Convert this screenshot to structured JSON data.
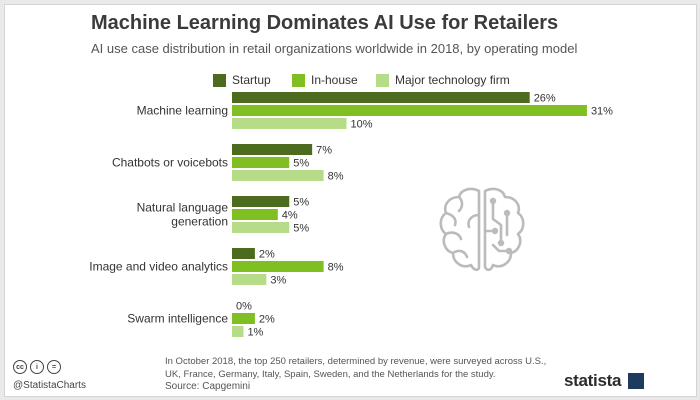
{
  "header": {
    "title": "Machine Learning Dominates AI Use for Retailers",
    "subtitle": "AI use case distribution in retail organizations worldwide in 2018, by operating model"
  },
  "colors": {
    "startup": "#4d6b1e",
    "inhouse": "#7fbf22",
    "major": "#b6dc8a"
  },
  "chart_data": {
    "type": "bar",
    "orientation": "horizontal",
    "categories": [
      "Machine learning",
      "Chatbots or voicebots",
      "Natural language generation",
      "Image and video analytics",
      "Swarm intelligence"
    ],
    "category_lines": [
      [
        "Machine learning"
      ],
      [
        "Chatbots or voicebots"
      ],
      [
        "Natural language",
        "generation"
      ],
      [
        "Image and video analytics"
      ],
      [
        "Swarm intelligence"
      ]
    ],
    "series": [
      {
        "name": "Startup",
        "values": [
          26,
          7,
          5,
          2,
          0
        ]
      },
      {
        "name": "In-house",
        "values": [
          31,
          5,
          4,
          8,
          2
        ]
      },
      {
        "name": "Major technology firm",
        "values": [
          10,
          8,
          5,
          3,
          1
        ]
      }
    ],
    "value_suffix": "%",
    "xlim": [
      0,
      31
    ],
    "legend_position": "top",
    "grid": false
  },
  "footer": {
    "note": "In October 2018, the top 250 retailers, determined by revenue, were surveyed across U.S., UK, France, Germany, Italy, Spain, Sweden, and the Netherlands for the study.",
    "source": "Source: Capgemini",
    "handle": "@StatistaCharts",
    "brand": "statista",
    "cc_icons": [
      "cc",
      "i",
      "="
    ]
  },
  "decor": {
    "icon": "brain-icon"
  }
}
